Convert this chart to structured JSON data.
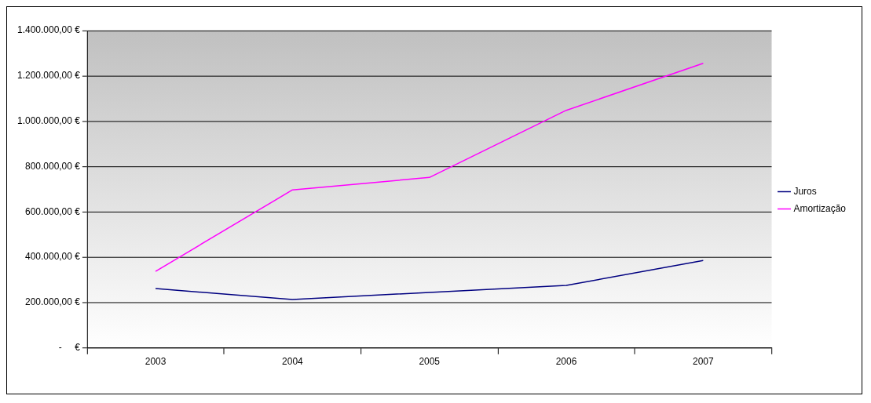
{
  "chart_data": {
    "type": "line",
    "categories": [
      "2003",
      "2004",
      "2005",
      "2006",
      "2007"
    ],
    "series": [
      {
        "name": "Juros",
        "color": "#000080",
        "values": [
          262000,
          214000,
          245000,
          276000,
          386000
        ]
      },
      {
        "name": "Amortização",
        "color": "#ff00ff",
        "values": [
          338000,
          697000,
          752000,
          1048000,
          1255000
        ]
      }
    ],
    "ylim": [
      0,
      1400000
    ],
    "yticks": [
      {
        "value": 0,
        "label": "-     €"
      },
      {
        "value": 200000,
        "label": "200.000,00 €"
      },
      {
        "value": 400000,
        "label": "400.000,00 €"
      },
      {
        "value": 600000,
        "label": "600.000,00 €"
      },
      {
        "value": 800000,
        "label": "800.000,00 €"
      },
      {
        "value": 1000000,
        "label": "1.000.000,00 €"
      },
      {
        "value": 1200000,
        "label": "1.200.000,00 €"
      },
      {
        "value": 1400000,
        "label": "1.400.000,00 €"
      }
    ],
    "grid": "y",
    "legend": "right",
    "marker": "none",
    "line_style": "solid"
  }
}
